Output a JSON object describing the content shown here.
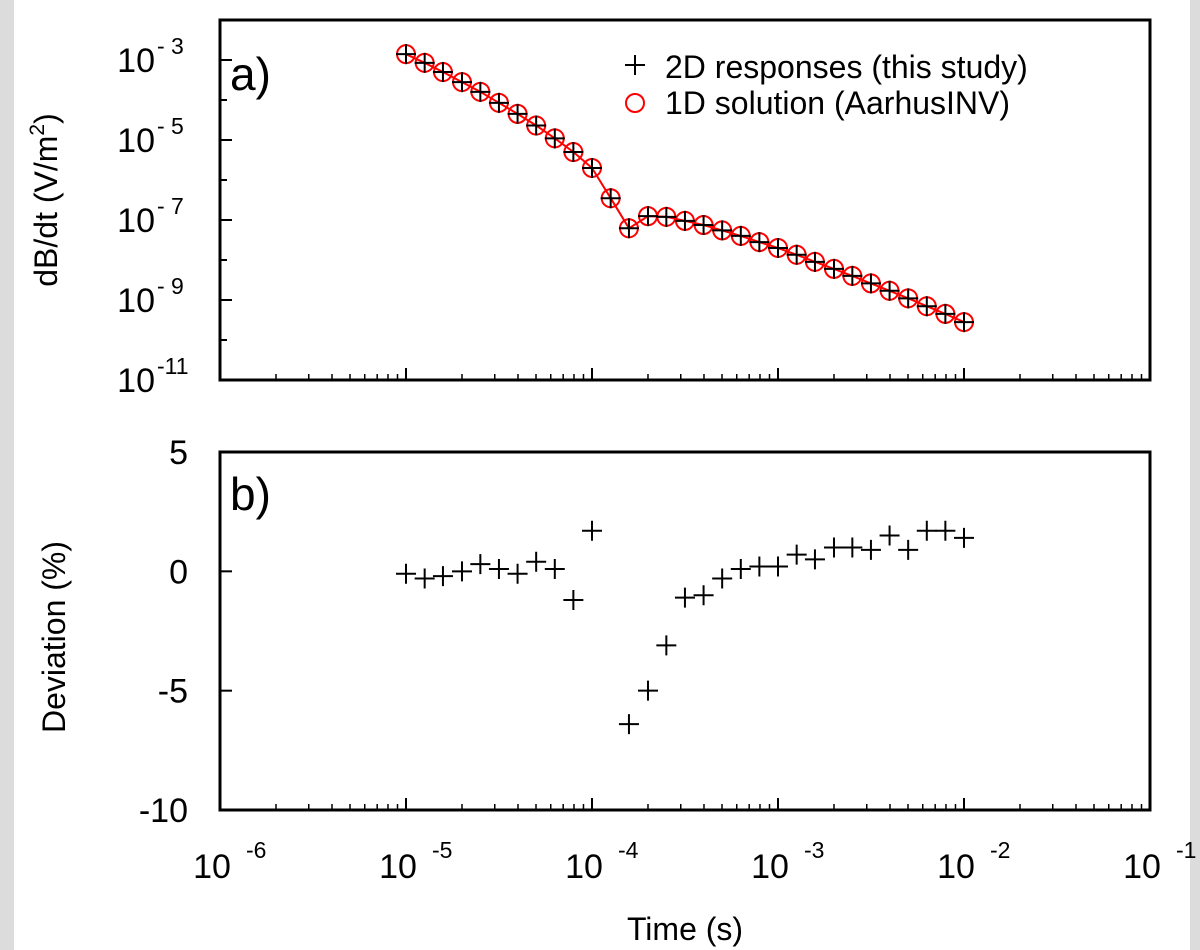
{
  "figure": {
    "background": "#ffffff",
    "page_background": "#dcdcdc"
  },
  "chart_data": [
    {
      "type": "scatter",
      "panel_label": "a)",
      "title": "",
      "xlabel": "",
      "ylabel": "dB/dt (V/m^2)",
      "ylabel_prefix": "dB/dt (V/m",
      "ylabel_sup": "2",
      "ylabel_suffix": ")",
      "xscale": "log",
      "yscale": "log",
      "xlim": [
        1e-06,
        0.1
      ],
      "ylim": [
        1e-11,
        0.01
      ],
      "ytick_exponents": [
        "-11",
        "- 9",
        "- 7",
        "- 5",
        "- 3"
      ],
      "grid": false,
      "legend_position": "top-right",
      "legend": [
        {
          "name": "2D responses (this study)",
          "marker": "plus",
          "color": "#000000"
        },
        {
          "name": "1D solution (AarhusINV)",
          "marker": "circle",
          "color": "#ff0000"
        }
      ],
      "x": [
        1e-05,
        1.26e-05,
        1.58e-05,
        2e-05,
        2.51e-05,
        3.16e-05,
        3.98e-05,
        5.01e-05,
        6.31e-05,
        7.94e-05,
        0.0001,
        0.000126,
        0.000158,
        0.0002,
        0.000251,
        0.000316,
        0.000398,
        0.000501,
        0.000631,
        0.000794,
        0.001,
        0.00126,
        0.00158,
        0.002,
        0.00251,
        0.00316,
        0.00398,
        0.00501,
        0.00631,
        0.00794,
        0.01
      ],
      "series": [
        {
          "name": "2D responses (this study)",
          "marker": "plus",
          "color": "#000000",
          "values": [
            0.0014,
            0.00085,
            0.0005,
            0.00028,
            0.00016,
            8.5e-05,
            4.5e-05,
            2.3e-05,
            1.1e-05,
            5e-06,
            2e-06,
            3.5e-07,
            6.2e-08,
            1.25e-07,
            1.2e-07,
            9.5e-08,
            7.5e-08,
            5.5e-08,
            4e-08,
            2.8e-08,
            2e-08,
            1.35e-08,
            9e-09,
            6e-09,
            4e-09,
            2.6e-09,
            1.7e-09,
            1.1e-09,
            7e-10,
            4.5e-10,
            2.8e-10
          ]
        },
        {
          "name": "1D solution (AarhusINV)",
          "marker": "circle",
          "color": "#ff0000",
          "line": true,
          "values": [
            0.0014,
            0.00085,
            0.0005,
            0.00028,
            0.00016,
            8.5e-05,
            4.5e-05,
            2.3e-05,
            1.1e-05,
            5e-06,
            2e-06,
            3.5e-07,
            6.2e-08,
            1.25e-07,
            1.2e-07,
            9.5e-08,
            7.5e-08,
            5.5e-08,
            4e-08,
            2.8e-08,
            2e-08,
            1.35e-08,
            9e-09,
            6e-09,
            4e-09,
            2.6e-09,
            1.7e-09,
            1.1e-09,
            7e-10,
            4.5e-10,
            2.8e-10
          ]
        }
      ]
    },
    {
      "type": "scatter",
      "panel_label": "b)",
      "title": "",
      "xlabel": "Time (s)",
      "ylabel": "Deviation (%)",
      "xscale": "log",
      "yscale": "linear",
      "xlim": [
        1e-06,
        0.1
      ],
      "ylim": [
        -10,
        5
      ],
      "yticks": [
        -10,
        -5,
        0,
        5
      ],
      "ytick_labels": [
        "-10",
        "-5",
        "0",
        "5"
      ],
      "xtick_exponents": [
        "-6",
        "-5",
        "-4",
        "-3",
        "-2",
        "-1"
      ],
      "grid": false,
      "x": [
        1e-05,
        1.26e-05,
        1.58e-05,
        2e-05,
        2.51e-05,
        3.16e-05,
        3.98e-05,
        5.01e-05,
        6.31e-05,
        7.94e-05,
        0.0001,
        0.000158,
        0.0002,
        0.000251,
        0.000316,
        0.000398,
        0.000501,
        0.000631,
        0.000794,
        0.001,
        0.00126,
        0.00158,
        0.002,
        0.00251,
        0.00316,
        0.00398,
        0.00501,
        0.00631,
        0.00794,
        0.01
      ],
      "series": [
        {
          "name": "2D responses (this study)",
          "marker": "plus",
          "color": "#000000",
          "values": [
            -0.1,
            -0.3,
            -0.2,
            0.0,
            0.3,
            0.1,
            -0.1,
            0.4,
            0.1,
            -1.2,
            1.7,
            -6.4,
            -5.0,
            -3.1,
            -1.1,
            -1.0,
            -0.3,
            0.1,
            0.2,
            0.2,
            0.7,
            0.5,
            1.0,
            1.0,
            0.9,
            1.5,
            0.9,
            1.7,
            1.7,
            1.4
          ]
        }
      ]
    }
  ]
}
